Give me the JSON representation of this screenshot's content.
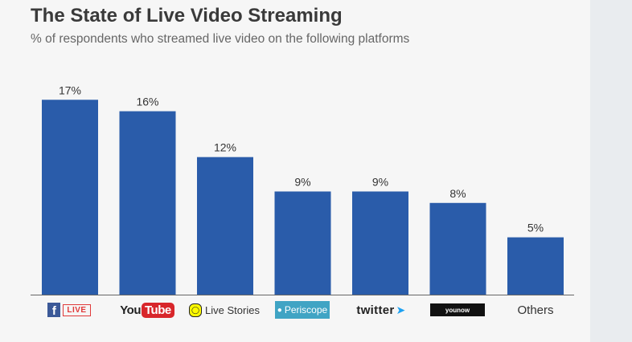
{
  "header": {
    "title": "The State of Live Video Streaming",
    "subtitle": "% of respondents who streamed live video on the following platforms"
  },
  "colors": {
    "bar": "#2a5caa",
    "axis": "#666666",
    "facebook": "#3b5998",
    "youtube_red": "#d8262b",
    "periscope": "#40a4c4",
    "twitter_blue": "#1da1f2",
    "younow": "#111111"
  },
  "logos": {
    "facebook_live": {
      "f": "f",
      "live": "LIVE"
    },
    "youtube": {
      "you": "You",
      "tube": "Tube"
    },
    "snapchat": {
      "label": "Live Stories"
    },
    "periscope": {
      "label": "Periscope"
    },
    "twitter": {
      "label": "twitter"
    },
    "younow": {
      "label": "younow"
    },
    "others": {
      "label": "Others"
    }
  },
  "chart_data": {
    "type": "bar",
    "title": "The State of Live Video Streaming",
    "subtitle": "% of respondents who streamed live video on the following platforms",
    "categories": [
      "Facebook Live",
      "YouTube",
      "Live Stories",
      "Periscope",
      "twitter",
      "younow",
      "Others"
    ],
    "values": [
      17,
      16,
      12,
      9,
      9,
      8,
      5
    ],
    "value_labels": [
      "17%",
      "16%",
      "12%",
      "9%",
      "9%",
      "8%",
      "5%"
    ],
    "ylim": [
      0,
      18
    ],
    "grid": false,
    "legend": "none"
  }
}
